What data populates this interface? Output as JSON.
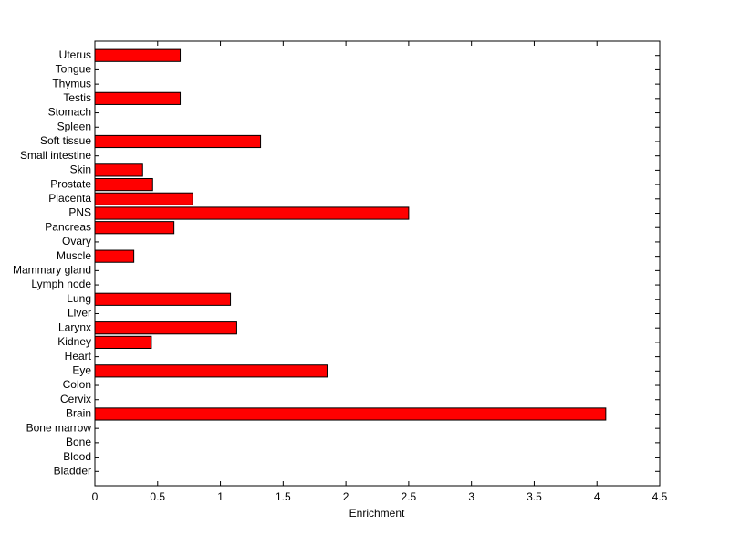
{
  "chart_data": {
    "type": "barh",
    "x_label": "Enrichment",
    "categories": [
      "Bladder",
      "Blood",
      "Bone",
      "Bone marrow",
      "Brain",
      "Cervix",
      "Colon",
      "Eye",
      "Heart",
      "Kidney",
      "Larynx",
      "Liver",
      "Lung",
      "Lymph node",
      "Mammary gland",
      "Muscle",
      "Ovary",
      "Pancreas",
      "PNS",
      "Placenta",
      "Prostate",
      "Skin",
      "Small intestine",
      "Soft tissue",
      "Spleen",
      "Stomach",
      "Testis",
      "Thymus",
      "Tongue",
      "Uterus"
    ],
    "values": [
      0,
      0,
      0,
      0,
      4.07,
      0,
      0,
      1.85,
      0,
      0.45,
      1.13,
      0,
      1.08,
      0,
      0,
      0.31,
      0,
      0.63,
      2.5,
      0.78,
      0.46,
      0.38,
      0,
      1.32,
      0,
      0,
      0.68,
      0,
      0,
      0.68
    ],
    "color": "#ff0000",
    "xlim": [
      0,
      4.5
    ],
    "xticks": [
      0,
      0.5,
      1,
      1.5,
      2,
      2.5,
      3,
      3.5,
      4,
      4.5
    ],
    "grid": false
  }
}
